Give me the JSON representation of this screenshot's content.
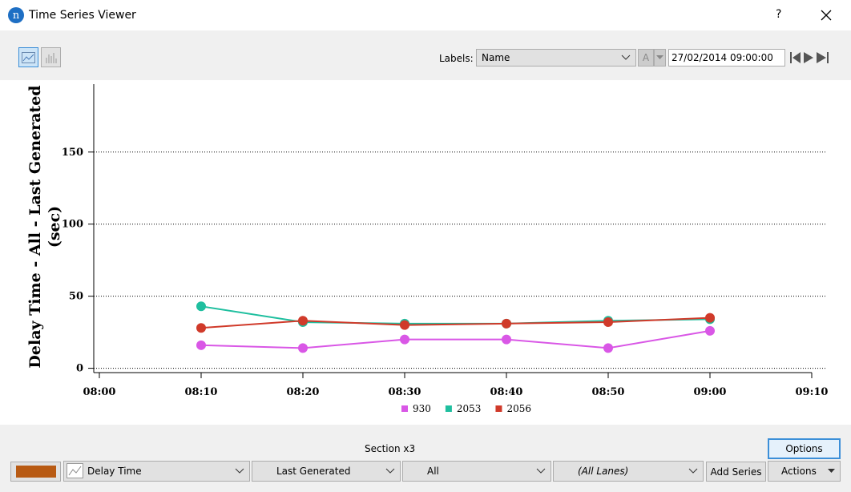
{
  "window": {
    "title": "Time Series Viewer",
    "help": "?"
  },
  "toolbar": {
    "labels_label": "Labels:",
    "labels_value": "Name",
    "font_button": "A",
    "datetime": "27/02/2014 09:00:00"
  },
  "chart_data": {
    "type": "line",
    "y_label": [
      "Delay Time - All - Last Generated",
      "(sec)"
    ],
    "x": [
      "08:10",
      "08:20",
      "08:30",
      "08:40",
      "08:50",
      "09:00"
    ],
    "xlim": [
      "08:00",
      "09:10"
    ],
    "xticks": [
      "08:00",
      "08:10",
      "08:20",
      "08:30",
      "08:40",
      "08:50",
      "09:00",
      "09:10"
    ],
    "ylim": [
      -3,
      196
    ],
    "yticks": [
      0,
      50,
      100,
      150
    ],
    "grid": true,
    "series": [
      {
        "name": "930",
        "color": "#d957e6",
        "values": [
          16,
          14,
          20,
          20,
          14,
          26
        ]
      },
      {
        "name": "2053",
        "color": "#1fbf9f",
        "values": [
          43,
          32,
          31,
          31,
          33,
          34
        ]
      },
      {
        "name": "2056",
        "color": "#d03a2a",
        "values": [
          28,
          33,
          30,
          31,
          32,
          35
        ]
      }
    ]
  },
  "bottom": {
    "section": "Section x3",
    "options": "Options",
    "variable": "Delay Time",
    "generation": "Last Generated",
    "vehicle": "All",
    "lanes": "(All Lanes)",
    "add_series": "Add Series",
    "actions": "Actions"
  }
}
